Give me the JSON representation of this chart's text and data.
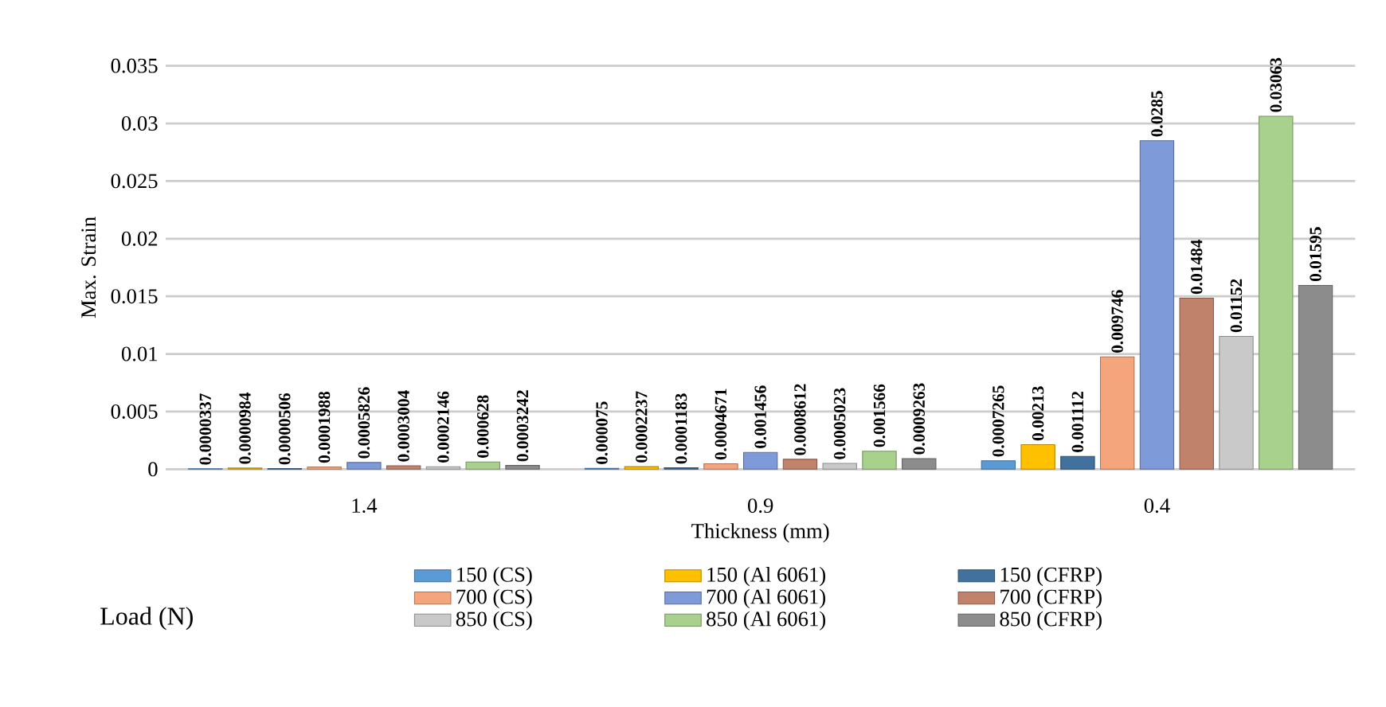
{
  "chart_data": {
    "type": "bar",
    "xlabel": "Thickness (mm)",
    "ylabel": "Max. Strain",
    "legend_title": "Load (N)",
    "categories": [
      "1.4",
      "0.9",
      "0.4"
    ],
    "series": [
      {
        "name": "150 (CS)",
        "color": "#5b9bd5",
        "values": [
          3.37e-05,
          7.5e-05,
          0.0007265
        ],
        "value_labels": [
          "0.0000337",
          "0.000075",
          "0.0007265"
        ]
      },
      {
        "name": "150 (Al 6061)",
        "color": "#ffc000",
        "values": [
          9.84e-05,
          0.0002237,
          0.00213
        ],
        "value_labels": [
          "0.0000984",
          "0.0002237",
          "0.00213"
        ]
      },
      {
        "name": "150 (CFRP)",
        "color": "#41719c",
        "values": [
          5.06e-05,
          0.0001183,
          0.001112
        ],
        "value_labels": [
          "0.0000506",
          "0.0001183",
          "0.001112"
        ]
      },
      {
        "name": "700 (CS)",
        "color": "#f4a57c",
        "values": [
          0.0001988,
          0.0004671,
          0.009746
        ],
        "value_labels": [
          "0.0001988",
          "0.0004671",
          "0.009746"
        ]
      },
      {
        "name": "700 (Al 6061)",
        "color": "#7f9ad8",
        "values": [
          0.0005826,
          0.001456,
          0.0285
        ],
        "value_labels": [
          "0.0005826",
          "0.001456",
          "0.0285"
        ]
      },
      {
        "name": "700 (CFRP)",
        "color": "#c0826a",
        "values": [
          0.0003004,
          0.0008612,
          0.01484
        ],
        "value_labels": [
          "0.0003004",
          "0.0008612",
          "0.01484"
        ]
      },
      {
        "name": "850 (CS)",
        "color": "#c9c9c9",
        "values": [
          0.0002146,
          0.0005023,
          0.01152
        ],
        "value_labels": [
          "0.0002146",
          "0.0005023",
          "0.01152"
        ]
      },
      {
        "name": "850 (Al 6061)",
        "color": "#a9d18e",
        "values": [
          0.000628,
          0.001566,
          0.03063
        ],
        "value_labels": [
          "0.000628",
          "0.001566",
          "0.03063"
        ]
      },
      {
        "name": "850 (CFRP)",
        "color": "#8c8c8c",
        "values": [
          0.0003242,
          0.0009263,
          0.01595
        ],
        "value_labels": [
          "0.0003242",
          "0.0009263",
          "0.01595"
        ]
      }
    ],
    "ylim": [
      0,
      0.035
    ],
    "yticks": [
      0,
      0.005,
      0.01,
      0.015,
      0.02,
      0.025,
      0.03,
      0.035
    ],
    "grid": "y",
    "legend": "bottom"
  }
}
